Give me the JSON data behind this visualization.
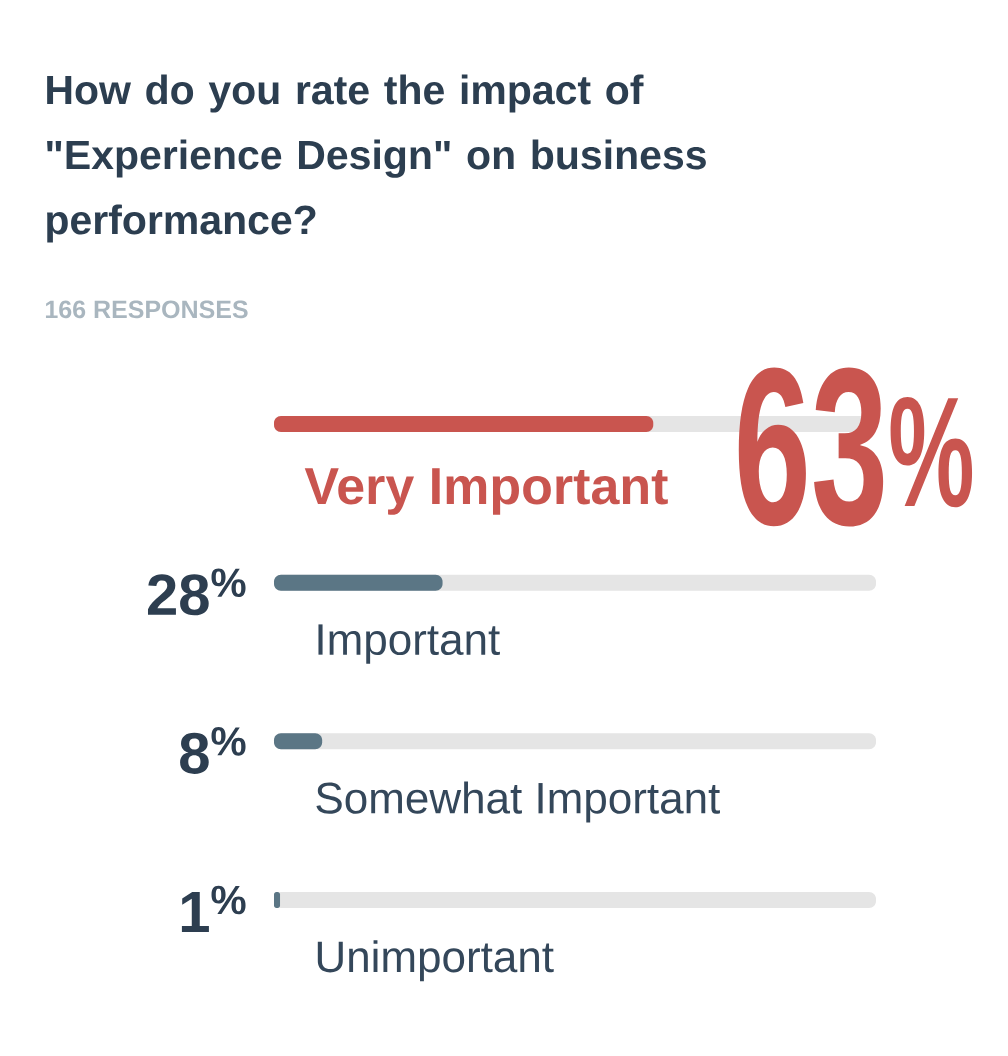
{
  "chart_data": {
    "type": "bar",
    "orientation": "horizontal",
    "title": "How do you rate the impact of \"Experience Design\" on business performance?",
    "subtitle": "166 RESPONSES",
    "categories": [
      "Very Important",
      "Important",
      "Somewhat Important",
      "Unimportant"
    ],
    "values": [
      63,
      28,
      8,
      1
    ],
    "colors": [
      "#c9554f",
      "#5b7685",
      "#5b7685",
      "#5b7685"
    ],
    "value_labels": [
      "63$^{%}$",
      "28$^{%}$",
      "8$^{%}$",
      "1$^{%}$"
    ],
    "xlim": [
      0,
      100
    ],
    "tick_labels": "y"
  }
}
